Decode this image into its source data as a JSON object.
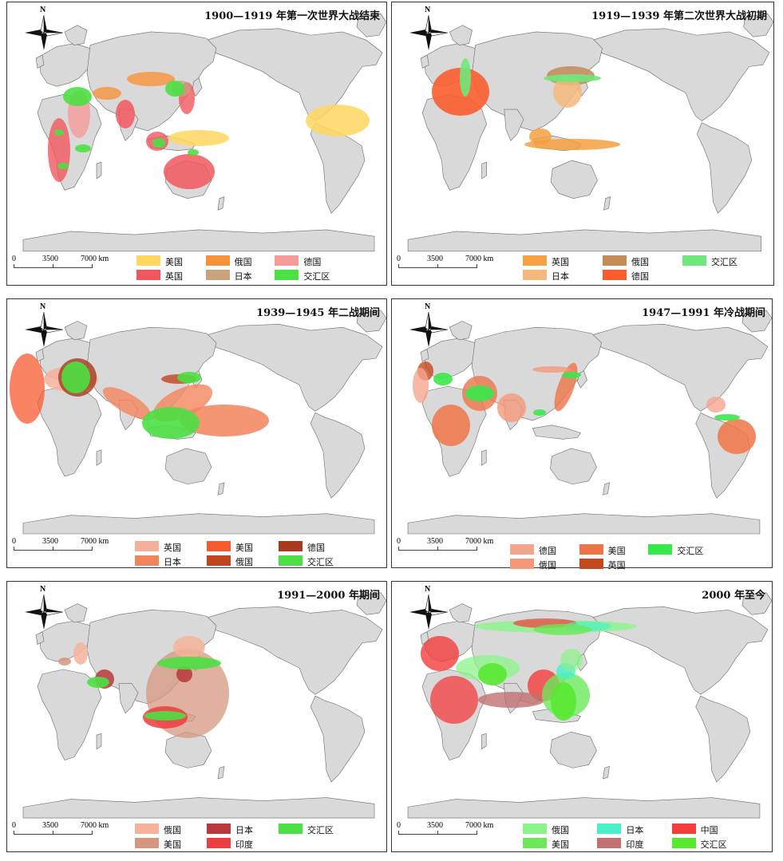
{
  "scale": {
    "zero": "0",
    "mid": "3500",
    "max": "7000 km"
  },
  "north": "N",
  "panels": [
    {
      "title": "1900—1919 年第一次世界大战结束",
      "legend": [
        {
          "label": "美国",
          "color": "#FFD75E"
        },
        {
          "label": "俄国",
          "color": "#F7923A"
        },
        {
          "label": "德国",
          "color": "#F79A9A"
        },
        {
          "label": "英国",
          "color": "#F0575E"
        },
        {
          "label": "日本",
          "color": "#C9A27E"
        },
        {
          "label": "交汇区",
          "color": "#4BE043"
        }
      ]
    },
    {
      "title": "1919—1939 年第二次世界大战初期",
      "legend": [
        {
          "label": "英国",
          "color": "#F6A040"
        },
        {
          "label": "俄国",
          "color": "#C48A58"
        },
        {
          "label": "交汇区",
          "color": "#6EE87A"
        },
        {
          "label": "日本",
          "color": "#F4B87A"
        },
        {
          "label": "德国",
          "color": "#FA5C2E"
        }
      ]
    },
    {
      "title": "1939—1945 年二战期间",
      "legend": [
        {
          "label": "英国",
          "color": "#F6B09A"
        },
        {
          "label": "美国",
          "color": "#F85A30"
        },
        {
          "label": "德国",
          "color": "#A8391E"
        },
        {
          "label": "日本",
          "color": "#F2845C"
        },
        {
          "label": "俄国",
          "color": "#C2451E"
        },
        {
          "label": "交汇区",
          "color": "#4BE043"
        }
      ]
    },
    {
      "title": "1947—1991 年冷战期间",
      "legend": [
        {
          "label": "德国",
          "color": "#F4A58E"
        },
        {
          "label": "美国",
          "color": "#EE7448"
        },
        {
          "label": "交汇区",
          "color": "#38E84A"
        },
        {
          "label": "俄国",
          "color": "#F49878"
        },
        {
          "label": "英国",
          "color": "#C4481E"
        }
      ]
    },
    {
      "title": "1991—2000 年期间",
      "legend": [
        {
          "label": "俄国",
          "color": "#F4B39A"
        },
        {
          "label": "日本",
          "color": "#B8383C"
        },
        {
          "label": "交汇区",
          "color": "#4BE043"
        },
        {
          "label": "美国",
          "color": "#D4977E"
        },
        {
          "label": "印度",
          "color": "#EE3C40"
        }
      ]
    },
    {
      "title": "2000 年至今",
      "legend": [
        {
          "label": "俄国",
          "color": "#8AF48A"
        },
        {
          "label": "日本",
          "color": "#48F0C8"
        },
        {
          "label": "中国",
          "color": "#F43C3C"
        },
        {
          "label": "美国",
          "color": "#6CE85A"
        },
        {
          "label": "印度",
          "color": "#C27070"
        },
        {
          "label": "交汇区",
          "color": "#58E830"
        }
      ]
    }
  ]
}
